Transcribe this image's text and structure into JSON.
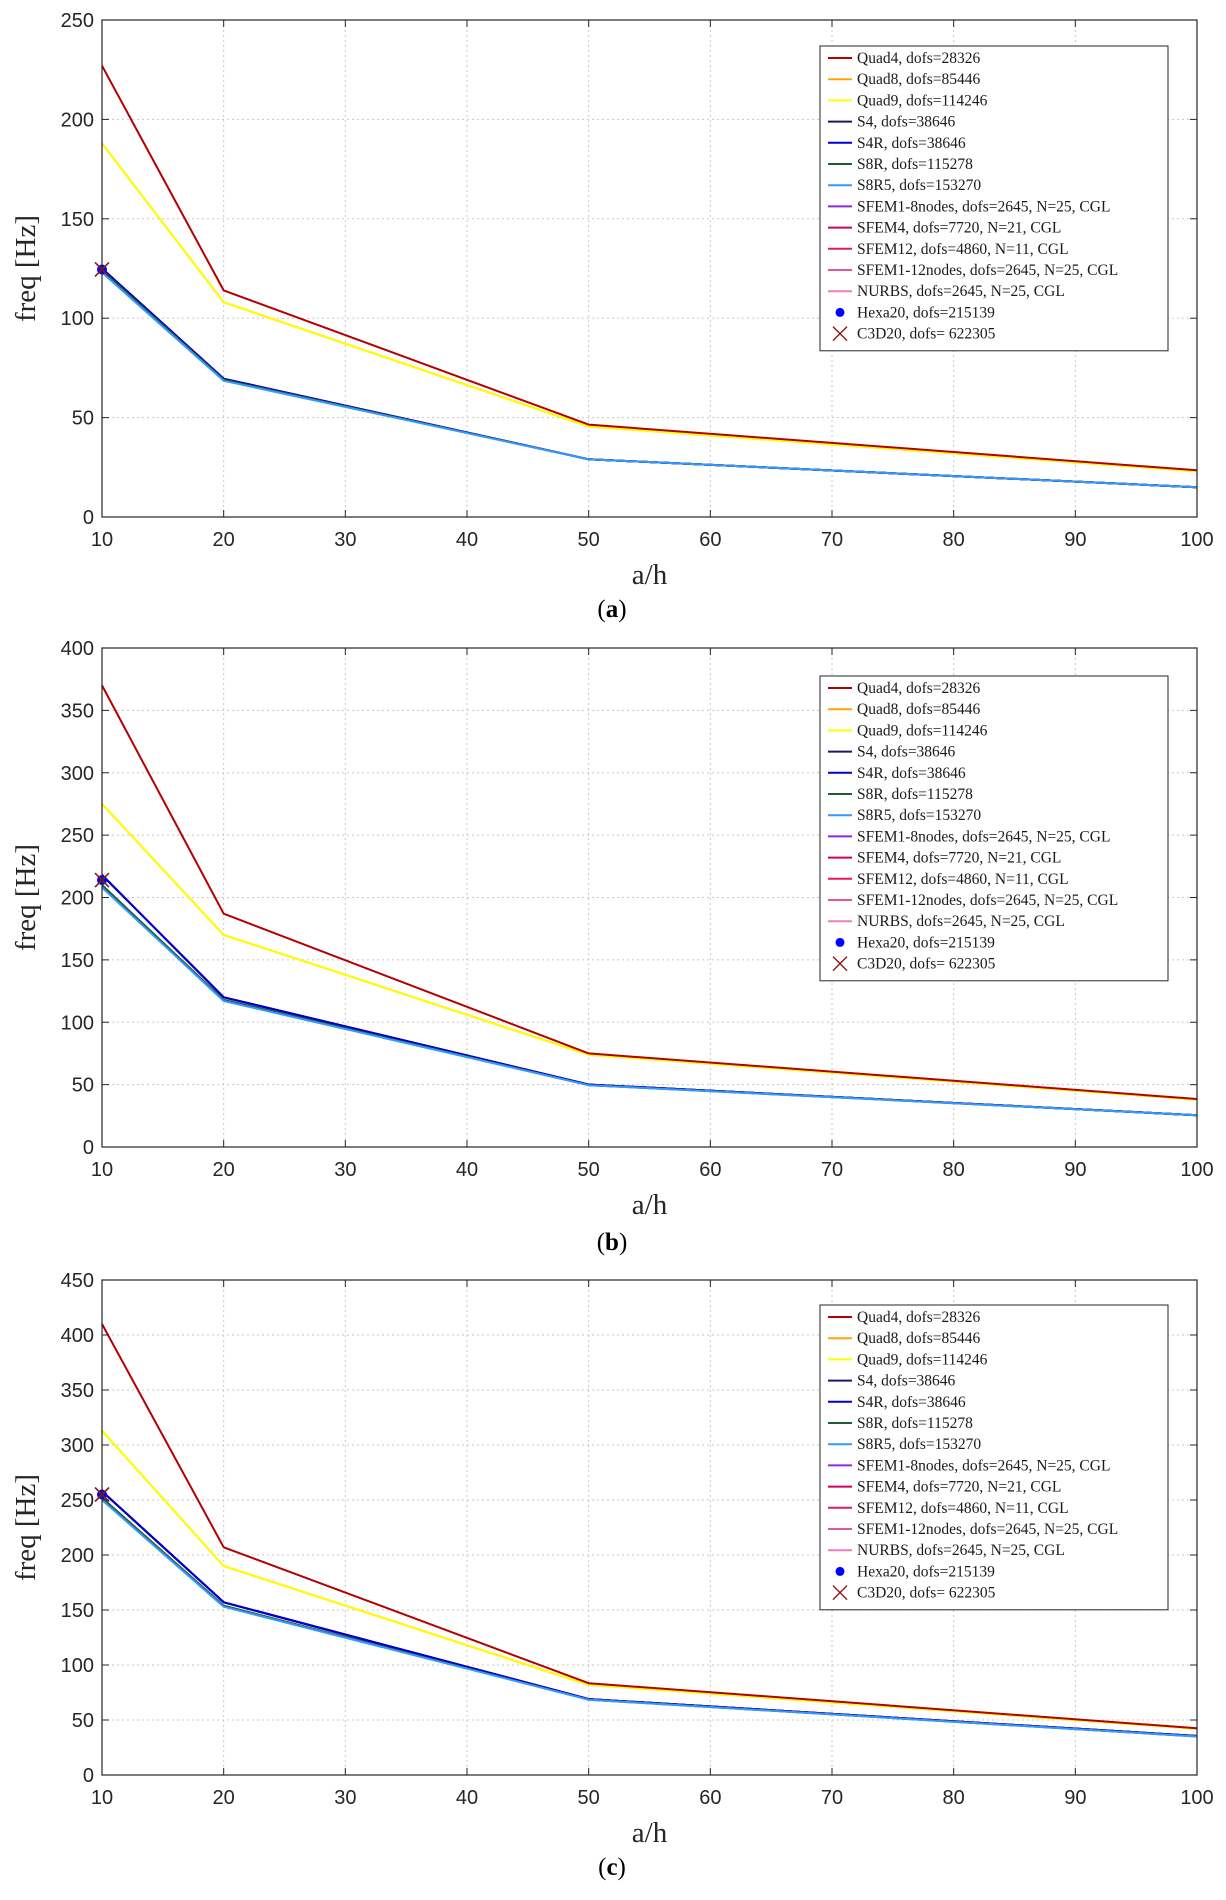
{
  "chart_data": [
    {
      "type": "line",
      "panel_label": "a",
      "xlabel": "a/h",
      "ylabel": "freq [Hz]",
      "xlim": [
        10,
        100
      ],
      "ylim": [
        0,
        250
      ],
      "xticks": [
        10,
        20,
        30,
        40,
        50,
        60,
        70,
        80,
        90,
        100
      ],
      "yticks": [
        0,
        50,
        100,
        150,
        200,
        250
      ],
      "grid": true,
      "legend_position": "top-right",
      "x": [
        10,
        20,
        50,
        100
      ],
      "series": [
        {
          "name": "Quad4, dofs=28326",
          "color": "#b30000",
          "marker": "line",
          "values": [
            227,
            114,
            46.5,
            23.5
          ]
        },
        {
          "name": "Quad8, dofs=85446",
          "color": "#ffa500",
          "marker": "line",
          "values": [
            188,
            108,
            45.5,
            23
          ]
        },
        {
          "name": "Quad9, dofs=114246",
          "color": "#ffff00",
          "marker": "line",
          "values": [
            188,
            108,
            45.5,
            23
          ]
        },
        {
          "name": "S4, dofs=38646",
          "color": "#1a1a66",
          "marker": "line",
          "values": [
            125,
            69.5,
            29,
            15
          ]
        },
        {
          "name": "S4R, dofs=38646",
          "color": "#0000cc",
          "marker": "line",
          "values": [
            125,
            69.5,
            29,
            15
          ]
        },
        {
          "name": "S8R, dofs=115278",
          "color": "#1e5e2e",
          "marker": "line",
          "values": [
            124,
            69,
            29,
            15
          ]
        },
        {
          "name": "S8R5, dofs=153270",
          "color": "#3399ff",
          "marker": "line",
          "values": [
            123,
            68.5,
            29,
            15
          ]
        },
        {
          "name": "SFEM1-8nodes, dofs=2645, N=25, CGL",
          "color": "#8a2be2",
          "marker": "line",
          "values": [
            125,
            69.5,
            29,
            15
          ]
        },
        {
          "name": "SFEM4, dofs=7720, N=21, CGL",
          "color": "#cc0066",
          "marker": "line",
          "values": [
            125,
            69.5,
            29,
            15
          ]
        },
        {
          "name": "SFEM12, dofs=4860, N=11, CGL",
          "color": "#e6195e",
          "marker": "line",
          "values": [
            125,
            69.5,
            29,
            15
          ]
        },
        {
          "name": "SFEM1-12nodes, dofs=2645, N=25, CGL",
          "color": "#e0559b",
          "marker": "line",
          "values": [
            125,
            69.5,
            29,
            15
          ]
        },
        {
          "name": "NURBS, dofs=2645, N=25, CGL",
          "color": "#e87fc0",
          "marker": "line",
          "values": [
            125,
            69.5,
            29,
            15
          ]
        },
        {
          "name": "Hexa20, dofs=215139",
          "color": "#0000ff",
          "marker": "dot",
          "values": [
            124.5,
            null,
            null,
            null
          ]
        },
        {
          "name": "C3D20, dofs= 622305",
          "color": "#8b1a1a",
          "marker": "x",
          "values": [
            124.5,
            null,
            null,
            null
          ]
        }
      ]
    },
    {
      "type": "line",
      "panel_label": "b",
      "xlabel": "a/h",
      "ylabel": "freq [Hz]",
      "xlim": [
        10,
        100
      ],
      "ylim": [
        0,
        400
      ],
      "xticks": [
        10,
        20,
        30,
        40,
        50,
        60,
        70,
        80,
        90,
        100
      ],
      "yticks": [
        0,
        50,
        100,
        150,
        200,
        250,
        300,
        350,
        400
      ],
      "grid": true,
      "legend_position": "top-right",
      "x": [
        10,
        20,
        50,
        100
      ],
      "series": [
        {
          "name": "Quad4, dofs=28326",
          "color": "#b30000",
          "marker": "line",
          "values": [
            370,
            187,
            75,
            38.5
          ]
        },
        {
          "name": "Quad8, dofs=85446",
          "color": "#ffa500",
          "marker": "line",
          "values": [
            275,
            170,
            74,
            38
          ]
        },
        {
          "name": "Quad9, dofs=114246",
          "color": "#ffff00",
          "marker": "line",
          "values": [
            275,
            170,
            74,
            38
          ]
        },
        {
          "name": "S4, dofs=38646",
          "color": "#1a1a66",
          "marker": "line",
          "values": [
            218,
            120,
            50,
            25.5
          ]
        },
        {
          "name": "S4R, dofs=38646",
          "color": "#0000cc",
          "marker": "line",
          "values": [
            218,
            120,
            50,
            25.5
          ]
        },
        {
          "name": "S8R, dofs=115278",
          "color": "#1e5e2e",
          "marker": "line",
          "values": [
            210,
            118,
            49.5,
            25.5
          ]
        },
        {
          "name": "S8R5, dofs=153270",
          "color": "#3399ff",
          "marker": "line",
          "values": [
            208,
            117,
            49.5,
            25.5
          ]
        },
        {
          "name": "SFEM1-8nodes, dofs=2645, N=25, CGL",
          "color": "#8a2be2",
          "marker": "line",
          "values": [
            218,
            120,
            50,
            25.5
          ]
        },
        {
          "name": "SFEM4, dofs=7720, N=21, CGL",
          "color": "#cc0066",
          "marker": "line",
          "values": [
            218,
            120,
            50,
            25.5
          ]
        },
        {
          "name": "SFEM12, dofs=4860, N=11, CGL",
          "color": "#e6195e",
          "marker": "line",
          "values": [
            218,
            120,
            50,
            25.5
          ]
        },
        {
          "name": "SFEM1-12nodes, dofs=2645, N=25, CGL",
          "color": "#e0559b",
          "marker": "line",
          "values": [
            218,
            120,
            50,
            25.5
          ]
        },
        {
          "name": "NURBS, dofs=2645, N=25, CGL",
          "color": "#e87fc0",
          "marker": "line",
          "values": [
            218,
            120,
            50,
            25.5
          ]
        },
        {
          "name": "Hexa20, dofs=215139",
          "color": "#0000ff",
          "marker": "dot",
          "values": [
            214,
            null,
            null,
            null
          ]
        },
        {
          "name": "C3D20, dofs= 622305",
          "color": "#8b1a1a",
          "marker": "x",
          "values": [
            214,
            null,
            null,
            null
          ]
        }
      ]
    },
    {
      "type": "line",
      "panel_label": "c",
      "xlabel": "a/h",
      "ylabel": "freq [Hz]",
      "xlim": [
        10,
        100
      ],
      "ylim": [
        0,
        450
      ],
      "xticks": [
        10,
        20,
        30,
        40,
        50,
        60,
        70,
        80,
        90,
        100
      ],
      "yticks": [
        0,
        50,
        100,
        150,
        200,
        250,
        300,
        350,
        400,
        450
      ],
      "grid": true,
      "legend_position": "top-right",
      "x": [
        10,
        20,
        50,
        100
      ],
      "series": [
        {
          "name": "Quad4, dofs=28326",
          "color": "#b30000",
          "marker": "line",
          "values": [
            410,
            207,
            83.5,
            42.5
          ]
        },
        {
          "name": "Quad8, dofs=85446",
          "color": "#ffa500",
          "marker": "line",
          "values": [
            313,
            190,
            82,
            42
          ]
        },
        {
          "name": "Quad9, dofs=114246",
          "color": "#ffff00",
          "marker": "line",
          "values": [
            313,
            190,
            82,
            42
          ]
        },
        {
          "name": "S4, dofs=38646",
          "color": "#1a1a66",
          "marker": "line",
          "values": [
            258,
            157,
            69,
            35.5
          ]
        },
        {
          "name": "S4R, dofs=38646",
          "color": "#0000cc",
          "marker": "line",
          "values": [
            258,
            157,
            69,
            35.5
          ]
        },
        {
          "name": "S8R, dofs=115278",
          "color": "#1e5e2e",
          "marker": "line",
          "values": [
            252,
            154,
            68.5,
            35
          ]
        },
        {
          "name": "S8R5, dofs=153270",
          "color": "#3399ff",
          "marker": "line",
          "values": [
            250,
            153,
            68.5,
            35
          ]
        },
        {
          "name": "SFEM1-8nodes, dofs=2645, N=25, CGL",
          "color": "#8a2be2",
          "marker": "line",
          "values": [
            258,
            157,
            69,
            35.5
          ]
        },
        {
          "name": "SFEM4, dofs=7720, N=21, CGL",
          "color": "#cc0066",
          "marker": "line",
          "values": [
            258,
            157,
            69,
            35.5
          ]
        },
        {
          "name": "SFEM12, dofs=4860, N=11, CGL",
          "color": "#e6195e",
          "marker": "line",
          "values": [
            258,
            157,
            69,
            35.5
          ]
        },
        {
          "name": "SFEM1-12nodes, dofs=2645, N=25, CGL",
          "color": "#e0559b",
          "marker": "line",
          "values": [
            258,
            157,
            69,
            35.5
          ]
        },
        {
          "name": "NURBS, dofs=2645, N=25, CGL",
          "color": "#e87fc0",
          "marker": "line",
          "values": [
            258,
            157,
            69,
            35.5
          ]
        },
        {
          "name": "Hexa20, dofs=215139",
          "color": "#0000ff",
          "marker": "dot",
          "values": [
            255,
            null,
            null,
            null
          ]
        },
        {
          "name": "C3D20, dofs= 622305",
          "color": "#8b1a1a",
          "marker": "x",
          "values": [
            255,
            null,
            null,
            null
          ]
        }
      ]
    }
  ]
}
